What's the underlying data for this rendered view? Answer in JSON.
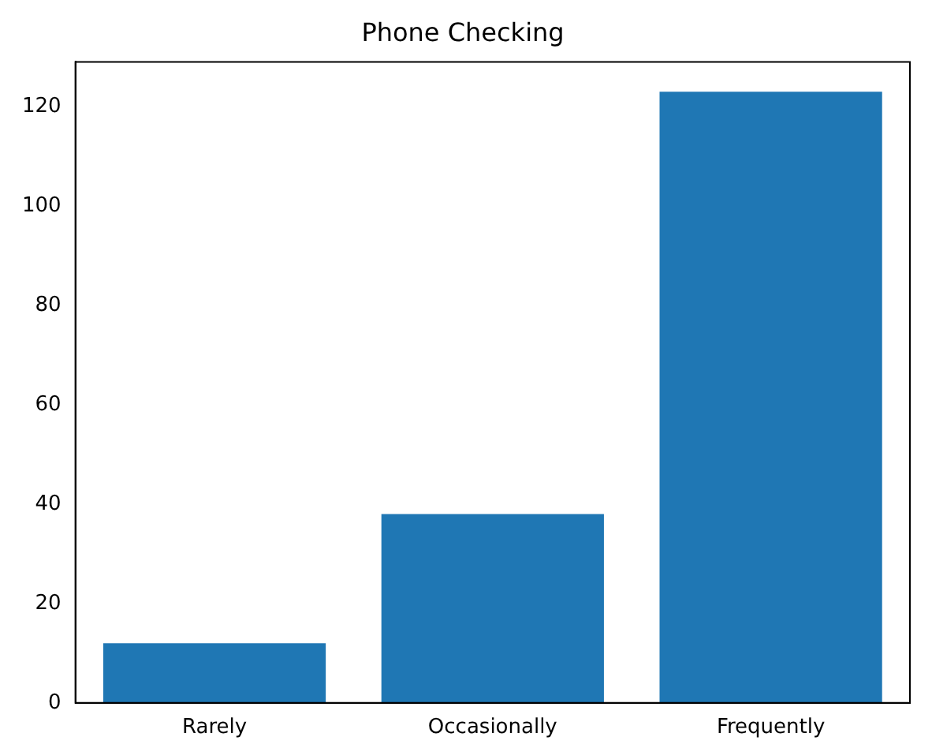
{
  "chart_data": {
    "type": "bar",
    "title": "Phone Checking",
    "categories": [
      "Rarely",
      "Occasionally",
      "Frequently"
    ],
    "values": [
      12,
      38,
      123
    ],
    "color": "#1f77b4",
    "ylim": [
      0,
      129
    ],
    "yticks": [
      0,
      20,
      40,
      60,
      80,
      100,
      120
    ],
    "grid": false,
    "legend": false
  }
}
